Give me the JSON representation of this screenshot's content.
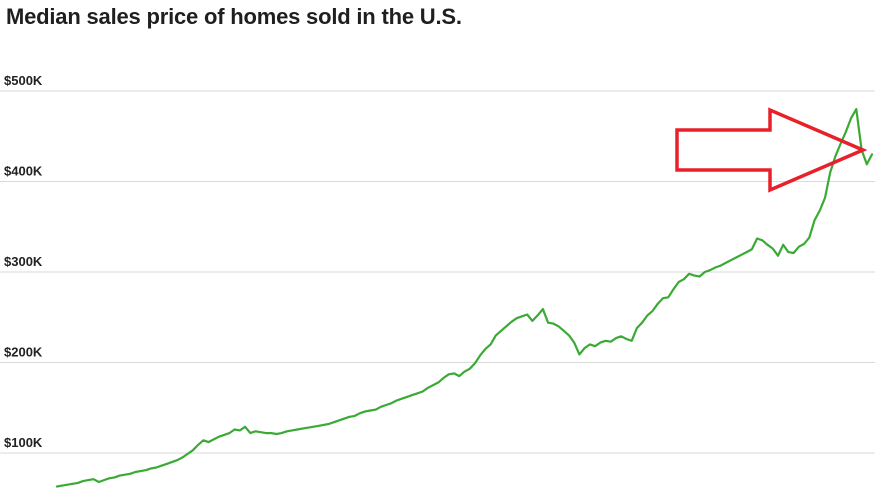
{
  "chart_data": {
    "type": "line",
    "title": "Median sales price of homes sold in the U.S.",
    "xlabel": "",
    "ylabel": "",
    "ylim": [
      55000,
      500000
    ],
    "yticks": [
      {
        "value": 100000,
        "label": "$100K"
      },
      {
        "value": 200000,
        "label": "$200K"
      },
      {
        "value": 300000,
        "label": "$300K"
      },
      {
        "value": 400000,
        "label": "$400K"
      },
      {
        "value": 500000,
        "label": "$500K"
      }
    ],
    "grid": true,
    "series": [
      {
        "color": "#3aaa35",
        "values": [
          63000,
          64000,
          65000,
          66000,
          67000,
          69000,
          70000,
          71000,
          68000,
          70000,
          72000,
          73000,
          75000,
          76000,
          77000,
          79000,
          80000,
          81000,
          83000,
          84000,
          86000,
          88000,
          90000,
          92000,
          95000,
          99000,
          103000,
          109000,
          114000,
          112000,
          115000,
          118000,
          120000,
          122000,
          126000,
          125000,
          129000,
          122000,
          124000,
          123000,
          122000,
          122000,
          121000,
          122000,
          124000,
          125000,
          126000,
          127000,
          128000,
          129000,
          130000,
          131000,
          132000,
          134000,
          136000,
          138000,
          140000,
          141000,
          144000,
          146000,
          147000,
          148000,
          151000,
          153000,
          155000,
          158000,
          160000,
          162000,
          164000,
          166000,
          168000,
          172000,
          175000,
          178000,
          183000,
          187000,
          188000,
          185000,
          190000,
          193000,
          199000,
          208000,
          215000,
          220000,
          230000,
          235000,
          240000,
          245000,
          249000,
          251000,
          253000,
          246000,
          252000,
          259000,
          244000,
          243000,
          240000,
          235000,
          230000,
          222000,
          209000,
          216000,
          220000,
          218000,
          222000,
          224000,
          223000,
          227000,
          229000,
          226000,
          224000,
          238000,
          244000,
          252000,
          257000,
          265000,
          271000,
          272000,
          281000,
          289000,
          292000,
          298000,
          296000,
          295000,
          300000,
          302000,
          305000,
          307000,
          310000,
          313000,
          316000,
          319000,
          322000,
          325000,
          337000,
          335000,
          330000,
          326000,
          318000,
          330000,
          322000,
          321000,
          328000,
          331000,
          338000,
          357000,
          368000,
          382000,
          410000,
          428000,
          442000,
          455000,
          470000,
          480000,
          435000,
          419000,
          430000
        ]
      }
    ]
  },
  "annotation": {
    "type": "arrow",
    "color": "#e8202a"
  }
}
